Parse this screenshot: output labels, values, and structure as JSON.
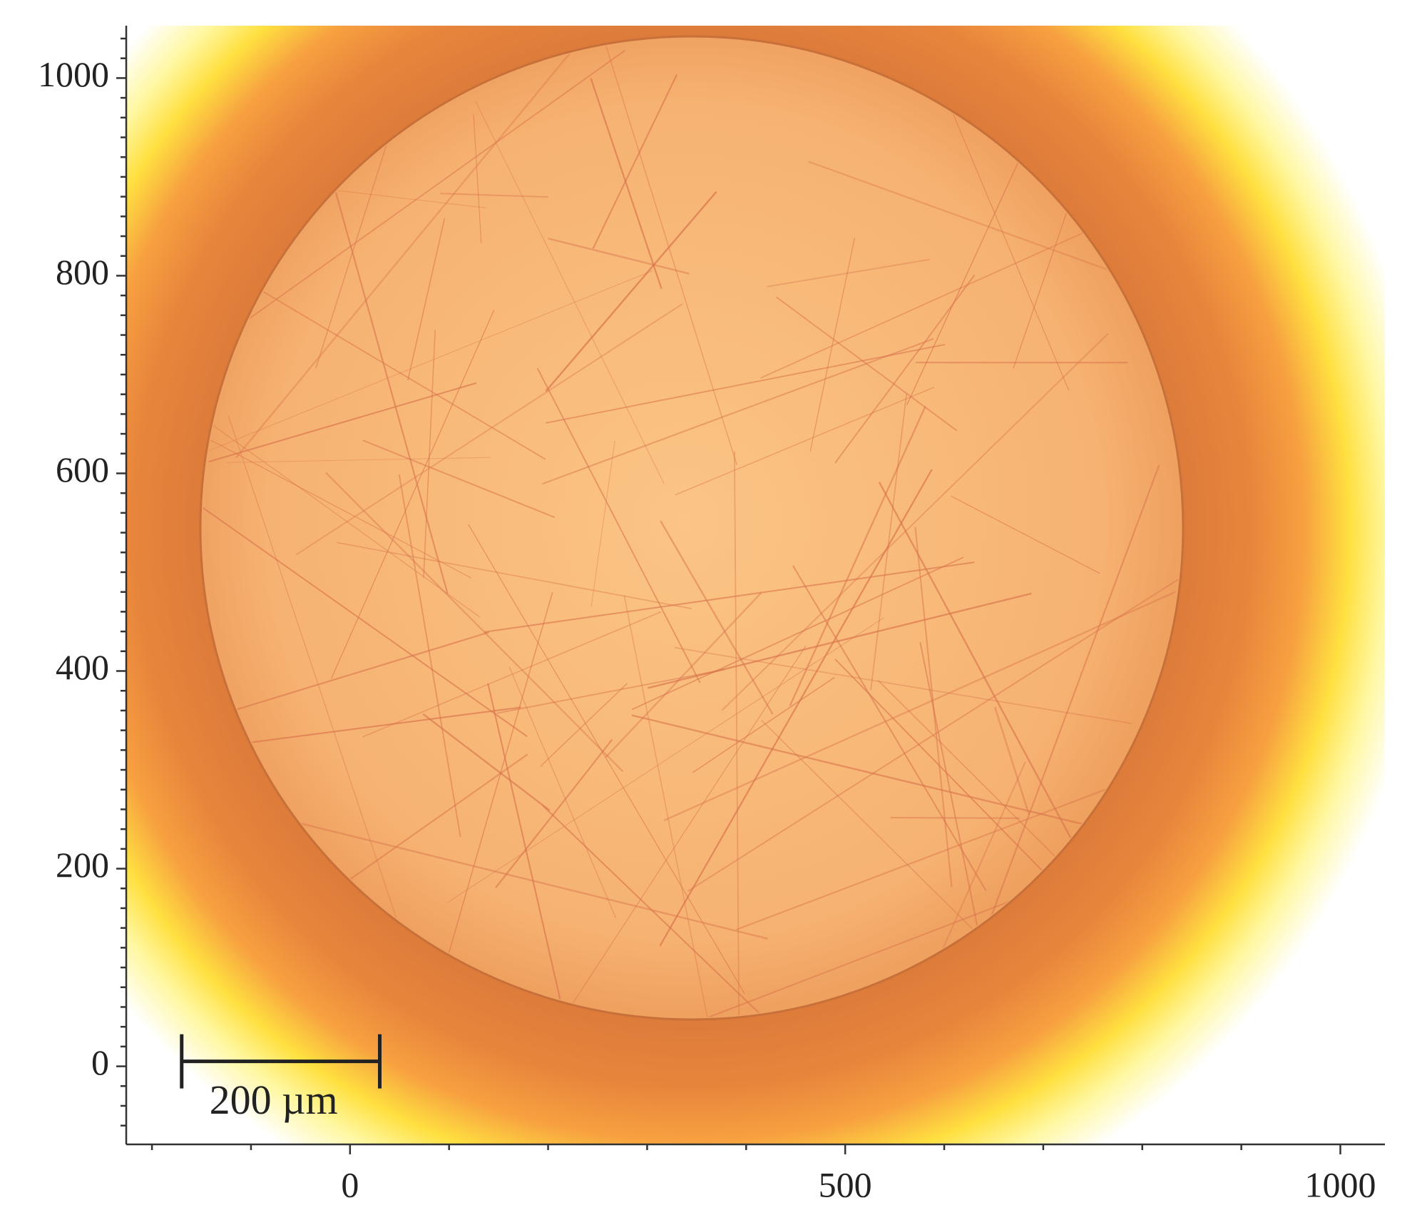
{
  "chart_data": {
    "type": "image",
    "xlim": [
      -226,
      1045
    ],
    "ylim": [
      -79,
      1053
    ],
    "xticks": [
      0,
      500,
      1000
    ],
    "yticks": [
      0,
      200,
      400,
      600,
      800,
      1000
    ],
    "xminorticks": [
      -200,
      -100,
      100,
      200,
      300,
      400,
      600,
      700,
      800,
      900
    ],
    "yminorticks": [
      -60,
      -40,
      -20,
      20,
      40,
      60,
      80,
      100,
      120,
      140,
      160,
      180,
      220,
      240,
      260,
      280,
      300,
      320,
      340,
      360,
      380,
      420,
      440,
      460,
      480,
      500,
      520,
      540,
      560,
      580,
      620,
      640,
      660,
      680,
      700,
      720,
      740,
      760,
      780,
      820,
      840,
      860,
      880,
      900,
      920,
      940,
      960,
      980,
      1020,
      1040
    ],
    "scale_bar": {
      "label": "200 µm",
      "length": 200
    }
  }
}
